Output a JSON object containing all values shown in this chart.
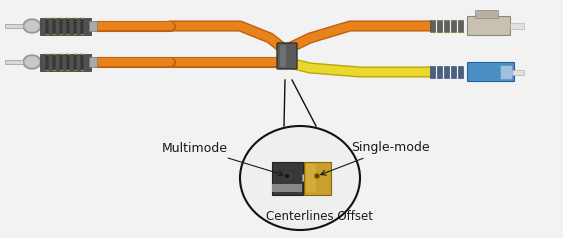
{
  "bg_color": "#f2f2f2",
  "labels": {
    "multimode": "Multimode",
    "singlemode": "Single-mode",
    "centerlines": "Centerlines Offset"
  },
  "orange": "#E8821A",
  "orange_dark": "#c06010",
  "orange_light": "#F0A050",
  "yellow": "#E8D830",
  "yellow_dark": "#b8a800",
  "gray_metal": "#909090",
  "gray_dark": "#555555",
  "gray_light": "#cccccc",
  "blue_sc": "#4a8fc4",
  "blue_sc_dark": "#2060a0",
  "gold": "#C8A030",
  "gold_dark": "#8a6a00",
  "black_connector": "#383838",
  "text_color": "#1a1a1a",
  "circle_stroke": "#111111"
}
